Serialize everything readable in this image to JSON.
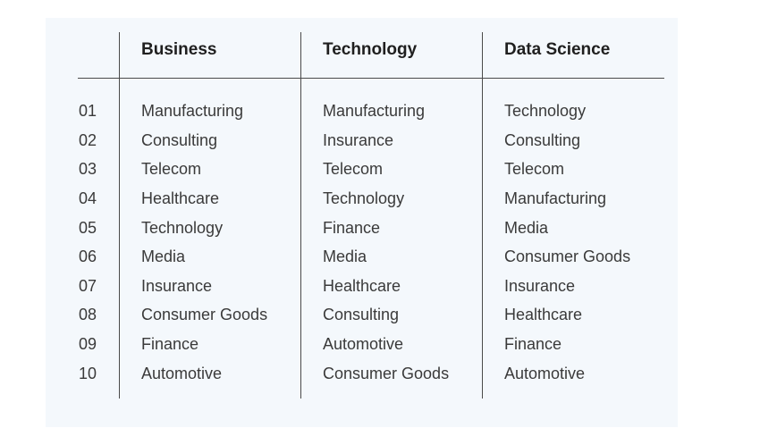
{
  "table": {
    "headers": [
      "Business",
      "Technology",
      "Data Science"
    ],
    "rows": [
      {
        "rank": "01",
        "business": "Manufacturing",
        "technology": "Manufacturing",
        "data_science": "Technology"
      },
      {
        "rank": "02",
        "business": "Consulting",
        "technology": "Insurance",
        "data_science": "Consulting"
      },
      {
        "rank": "03",
        "business": "Telecom",
        "technology": "Telecom",
        "data_science": "Telecom"
      },
      {
        "rank": "04",
        "business": "Healthcare",
        "technology": "Technology",
        "data_science": "Manufacturing"
      },
      {
        "rank": "05",
        "business": "Technology",
        "technology": "Finance",
        "data_science": "Media"
      },
      {
        "rank": "06",
        "business": "Media",
        "technology": "Media",
        "data_science": "Consumer Goods"
      },
      {
        "rank": "07",
        "business": "Insurance",
        "technology": "Healthcare",
        "data_science": "Insurance"
      },
      {
        "rank": "08",
        "business": "Consumer Goods",
        "technology": "Consulting",
        "data_science": "Healthcare"
      },
      {
        "rank": "09",
        "business": "Finance",
        "technology": "Automotive",
        "data_science": "Finance"
      },
      {
        "rank": "10",
        "business": "Automotive",
        "technology": "Consumer Goods",
        "data_science": "Automotive"
      }
    ]
  },
  "colors": {
    "panel_background": "#f4f8fc",
    "rule": "#4a4a4a",
    "header_text": "#1f1f1f",
    "body_text": "#3a3a3a"
  }
}
